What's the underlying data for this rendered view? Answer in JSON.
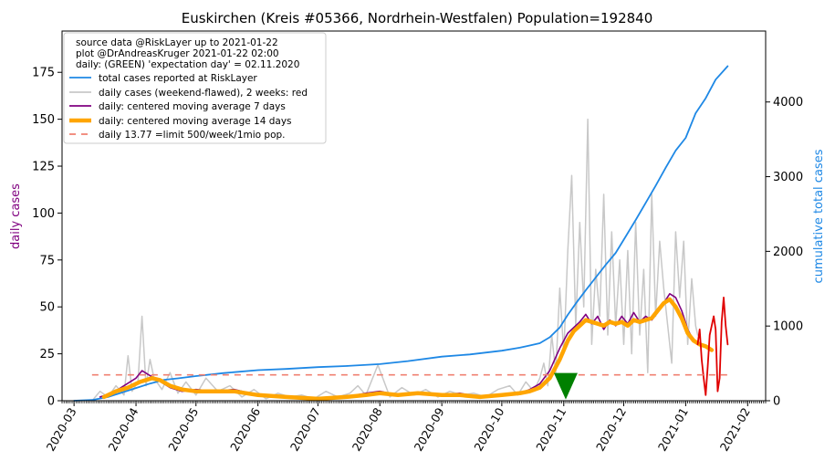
{
  "chart_data": {
    "type": "line",
    "title": "Euskirchen (Kreis #05366, Nordrhein-Westfalen) Population=192840",
    "ylabel_left": "daily cases",
    "ylabel_right": "cumulative total cases",
    "ylim_left": [
      0,
      197
    ],
    "ylim_right": [
      0,
      4950
    ],
    "yticks_left": [
      0,
      25,
      50,
      75,
      100,
      125,
      150,
      175
    ],
    "yticks_right": [
      0,
      1000,
      2000,
      3000,
      4000
    ],
    "xlim": [
      "2020-02-24",
      "2021-02-10"
    ],
    "xticks": [
      "2020-03",
      "2020-04",
      "2020-05",
      "2020-06",
      "2020-07",
      "2020-08",
      "2020-09",
      "2020-10",
      "2020-11",
      "2020-12",
      "2021-01",
      "2021-02"
    ],
    "xtick_dates": [
      "2020-03-01",
      "2020-04-01",
      "2020-05-01",
      "2020-06-01",
      "2020-07-01",
      "2020-08-01",
      "2020-09-01",
      "2020-10-01",
      "2020-11-01",
      "2020-12-01",
      "2021-01-01",
      "2021-02-01"
    ],
    "legend": {
      "placement": "top-left",
      "info_lines": [
        "source data @RiskLayer up to 2021-01-22",
        "plot @DrAndreasKruger 2021-01-22 02:00",
        "daily: (GREEN) 'expectation day' = 02.11.2020"
      ],
      "entries": [
        {
          "label": "total cases reported at RiskLayer",
          "color": "#1e88e5",
          "style": "line"
        },
        {
          "label": "daily cases (weekend-flawed), 2 weeks: red",
          "color": "#c8c8c8",
          "style": "line"
        },
        {
          "label": "daily: centered moving average 7 days",
          "color": "#800080",
          "style": "line"
        },
        {
          "label": "daily: centered moving average 14 days",
          "color": "#ffa500",
          "style": "thick"
        },
        {
          "label": "daily 13.77 =limit 500/week/1mio pop.",
          "color": "#f08070",
          "style": "dashed"
        }
      ]
    },
    "limit_line": {
      "value": 13.77,
      "x_start": "2020-03-10",
      "x_end": "2021-01-22"
    },
    "expectation_marker": {
      "date": "2020-11-02",
      "value": 7,
      "color": "#008000"
    },
    "series": [
      {
        "name": "total cases reported at RiskLayer",
        "axis": "right",
        "color": "#1e88e5",
        "x": [
          "2020-03-01",
          "2020-03-10",
          "2020-03-18",
          "2020-03-25",
          "2020-04-01",
          "2020-04-08",
          "2020-04-15",
          "2020-04-22",
          "2020-05-01",
          "2020-05-15",
          "2020-06-01",
          "2020-06-15",
          "2020-07-01",
          "2020-07-15",
          "2020-08-01",
          "2020-08-15",
          "2020-09-01",
          "2020-09-15",
          "2020-10-01",
          "2020-10-10",
          "2020-10-15",
          "2020-10-20",
          "2020-10-25",
          "2020-10-30",
          "2020-11-03",
          "2020-11-07",
          "2020-11-12",
          "2020-11-17",
          "2020-11-22",
          "2020-11-27",
          "2020-12-02",
          "2020-12-07",
          "2020-12-12",
          "2020-12-17",
          "2020-12-22",
          "2020-12-27",
          "2021-01-01",
          "2021-01-06",
          "2021-01-11",
          "2021-01-16",
          "2021-01-22"
        ],
        "values": [
          0,
          10,
          50,
          110,
          170,
          230,
          280,
          300,
          330,
          370,
          410,
          425,
          450,
          465,
          490,
          530,
          590,
          620,
          670,
          710,
          740,
          770,
          850,
          980,
          1150,
          1300,
          1480,
          1650,
          1820,
          1980,
          2200,
          2420,
          2650,
          2880,
          3120,
          3350,
          3520,
          3850,
          4050,
          4300,
          4480
        ]
      },
      {
        "name": "daily cases (weekend-flawed), 2 weeks: red",
        "axis": "left",
        "color": "#c8c8c8",
        "x": [
          "2020-03-10",
          "2020-03-14",
          "2020-03-18",
          "2020-03-22",
          "2020-03-26",
          "2020-03-28",
          "2020-03-30",
          "2020-04-02",
          "2020-04-04",
          "2020-04-06",
          "2020-04-08",
          "2020-04-10",
          "2020-04-14",
          "2020-04-18",
          "2020-04-22",
          "2020-04-26",
          "2020-05-01",
          "2020-05-06",
          "2020-05-12",
          "2020-05-18",
          "2020-05-24",
          "2020-05-30",
          "2020-06-05",
          "2020-06-11",
          "2020-06-17",
          "2020-06-23",
          "2020-06-29",
          "2020-07-05",
          "2020-07-11",
          "2020-07-17",
          "2020-07-21",
          "2020-07-25",
          "2020-07-31",
          "2020-08-06",
          "2020-08-12",
          "2020-08-18",
          "2020-08-24",
          "2020-08-30",
          "2020-09-05",
          "2020-09-11",
          "2020-09-17",
          "2020-09-23",
          "2020-09-29",
          "2020-10-05",
          "2020-10-09",
          "2020-10-13",
          "2020-10-17",
          "2020-10-20",
          "2020-10-22",
          "2020-10-24",
          "2020-10-26",
          "2020-10-28",
          "2020-10-30",
          "2020-11-01",
          "2020-11-03",
          "2020-11-05",
          "2020-11-07",
          "2020-11-09",
          "2020-11-11",
          "2020-11-13",
          "2020-11-15",
          "2020-11-17",
          "2020-11-19",
          "2020-11-21",
          "2020-11-23",
          "2020-11-25",
          "2020-11-27",
          "2020-11-29",
          "2020-12-01",
          "2020-12-03",
          "2020-12-05",
          "2020-12-07",
          "2020-12-09",
          "2020-12-11",
          "2020-12-13",
          "2020-12-15",
          "2020-12-17",
          "2020-12-19",
          "2020-12-21",
          "2020-12-23",
          "2020-12-25",
          "2020-12-27",
          "2020-12-29",
          "2020-12-31",
          "2021-01-02",
          "2021-01-04",
          "2021-01-06",
          "2021-01-07"
        ],
        "values": [
          0,
          5,
          2,
          8,
          3,
          24,
          5,
          10,
          45,
          8,
          22,
          12,
          6,
          15,
          4,
          10,
          3,
          12,
          5,
          8,
          2,
          6,
          1,
          4,
          2,
          3,
          1,
          5,
          2,
          4,
          8,
          3,
          19,
          2,
          7,
          3,
          6,
          2,
          5,
          3,
          4,
          2,
          6,
          8,
          3,
          10,
          5,
          12,
          20,
          8,
          35,
          15,
          60,
          25,
          80,
          120,
          40,
          95,
          50,
          150,
          30,
          70,
          45,
          110,
          35,
          90,
          40,
          75,
          30,
          80,
          25,
          95,
          35,
          70,
          15,
          110,
          45,
          85,
          60,
          40,
          20,
          90,
          55,
          85,
          30,
          65,
          40,
          35
        ]
      },
      {
        "name": "daily: centered moving average 7 days",
        "axis": "left",
        "color": "#800080",
        "x": [
          "2020-03-14",
          "2020-03-20",
          "2020-03-26",
          "2020-04-01",
          "2020-04-04",
          "2020-04-07",
          "2020-04-12",
          "2020-04-18",
          "2020-04-24",
          "2020-05-01",
          "2020-05-10",
          "2020-05-20",
          "2020-06-01",
          "2020-06-15",
          "2020-07-01",
          "2020-07-15",
          "2020-07-25",
          "2020-08-01",
          "2020-08-10",
          "2020-08-20",
          "2020-09-01",
          "2020-09-10",
          "2020-09-20",
          "2020-10-01",
          "2020-10-10",
          "2020-10-15",
          "2020-10-20",
          "2020-10-25",
          "2020-10-30",
          "2020-11-03",
          "2020-11-06",
          "2020-11-09",
          "2020-11-12",
          "2020-11-15",
          "2020-11-18",
          "2020-11-21",
          "2020-11-24",
          "2020-11-27",
          "2020-11-30",
          "2020-12-03",
          "2020-12-06",
          "2020-12-09",
          "2020-12-12",
          "2020-12-15",
          "2020-12-18",
          "2020-12-21",
          "2020-12-24",
          "2020-12-27",
          "2020-12-30",
          "2021-01-02",
          "2021-01-05",
          "2021-01-08",
          "2021-01-10"
        ],
        "values": [
          2,
          4,
          8,
          12,
          16,
          14,
          11,
          7,
          5,
          6,
          5,
          6,
          3,
          2,
          1,
          2,
          4,
          5,
          3,
          4,
          3,
          4,
          2,
          3,
          4,
          6,
          9,
          16,
          28,
          36,
          39,
          42,
          46,
          41,
          45,
          38,
          43,
          40,
          45,
          41,
          47,
          42,
          45,
          43,
          47,
          52,
          57,
          55,
          48,
          38,
          32,
          30,
          29
        ]
      },
      {
        "name": "daily: centered moving average 14 days",
        "axis": "left",
        "color": "#ffa500",
        "x": [
          "2020-03-16",
          "2020-03-22",
          "2020-03-28",
          "2020-04-03",
          "2020-04-09",
          "2020-04-13",
          "2020-04-18",
          "2020-04-24",
          "2020-05-01",
          "2020-05-10",
          "2020-05-20",
          "2020-06-01",
          "2020-06-15",
          "2020-07-01",
          "2020-07-15",
          "2020-07-25",
          "2020-08-01",
          "2020-08-10",
          "2020-08-20",
          "2020-09-01",
          "2020-09-10",
          "2020-09-20",
          "2020-10-01",
          "2020-10-10",
          "2020-10-15",
          "2020-10-20",
          "2020-10-25",
          "2020-10-30",
          "2020-11-03",
          "2020-11-06",
          "2020-11-09",
          "2020-11-12",
          "2020-11-15",
          "2020-11-18",
          "2020-11-21",
          "2020-11-24",
          "2020-11-27",
          "2020-11-30",
          "2020-12-03",
          "2020-12-06",
          "2020-12-09",
          "2020-12-12",
          "2020-12-15",
          "2020-12-18",
          "2020-12-21",
          "2020-12-24",
          "2020-12-27",
          "2020-12-30",
          "2021-01-02",
          "2021-01-05",
          "2021-01-08",
          "2021-01-11",
          "2021-01-14"
        ],
        "values": [
          2,
          5,
          7,
          10,
          12,
          11,
          8,
          6,
          5,
          5,
          5,
          3,
          2,
          1,
          2,
          3,
          4,
          3,
          4,
          3,
          3,
          2,
          3,
          4,
          5,
          7,
          12,
          22,
          32,
          37,
          40,
          43,
          42,
          41,
          40,
          42,
          41,
          42,
          40,
          43,
          42,
          43,
          44,
          48,
          52,
          54,
          50,
          44,
          36,
          32,
          30,
          29,
          27
        ]
      },
      {
        "name": "daily cases: last 2 weeks (red)",
        "axis": "left",
        "color": "#e00000",
        "x": [
          "2021-01-07",
          "2021-01-08",
          "2021-01-09",
          "2021-01-10",
          "2021-01-11",
          "2021-01-12",
          "2021-01-13",
          "2021-01-14",
          "2021-01-15",
          "2021-01-16",
          "2021-01-17",
          "2021-01-18",
          "2021-01-19",
          "2021-01-20",
          "2021-01-21",
          "2021-01-22"
        ],
        "values": [
          30,
          38,
          22,
          12,
          3,
          18,
          35,
          40,
          45,
          38,
          5,
          12,
          42,
          55,
          40,
          30
        ]
      }
    ]
  }
}
